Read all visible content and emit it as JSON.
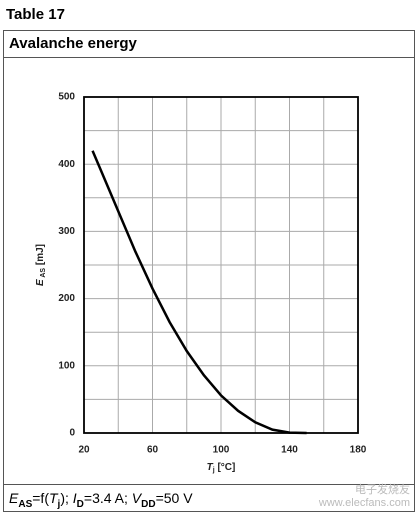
{
  "table_label": "Table 17",
  "header": "Avalanche energy",
  "footer": [
    "E",
    "AS",
    "=f(",
    "T",
    "j",
    "); ",
    "I",
    "D",
    "=3.4 A; ",
    "V",
    "DD",
    "=50 V"
  ],
  "watermark": [
    "电子发烧友",
    "www.elecfans.com"
  ],
  "chart_data": {
    "type": "line",
    "y_label": [
      "E",
      " AS",
      " [mJ]"
    ],
    "x_label": [
      "T",
      "j",
      " [°C]"
    ],
    "x": [
      25,
      30,
      40,
      50,
      60,
      70,
      80,
      90,
      100,
      110,
      120,
      130,
      140,
      150
    ],
    "values": [
      420,
      390,
      330,
      270,
      215,
      165,
      122,
      86,
      56,
      33,
      16,
      5,
      0.5,
      0
    ],
    "color": "#000000",
    "xlim": [
      20,
      180
    ],
    "xticks": [
      20,
      60,
      100,
      140,
      180
    ],
    "xminor": [
      40,
      80,
      120,
      160
    ],
    "ylim": [
      0,
      500
    ],
    "yticks": [
      0,
      100,
      200,
      300,
      400,
      500
    ],
    "yminor": [
      50,
      150,
      250,
      350,
      450
    ],
    "grid": true
  }
}
